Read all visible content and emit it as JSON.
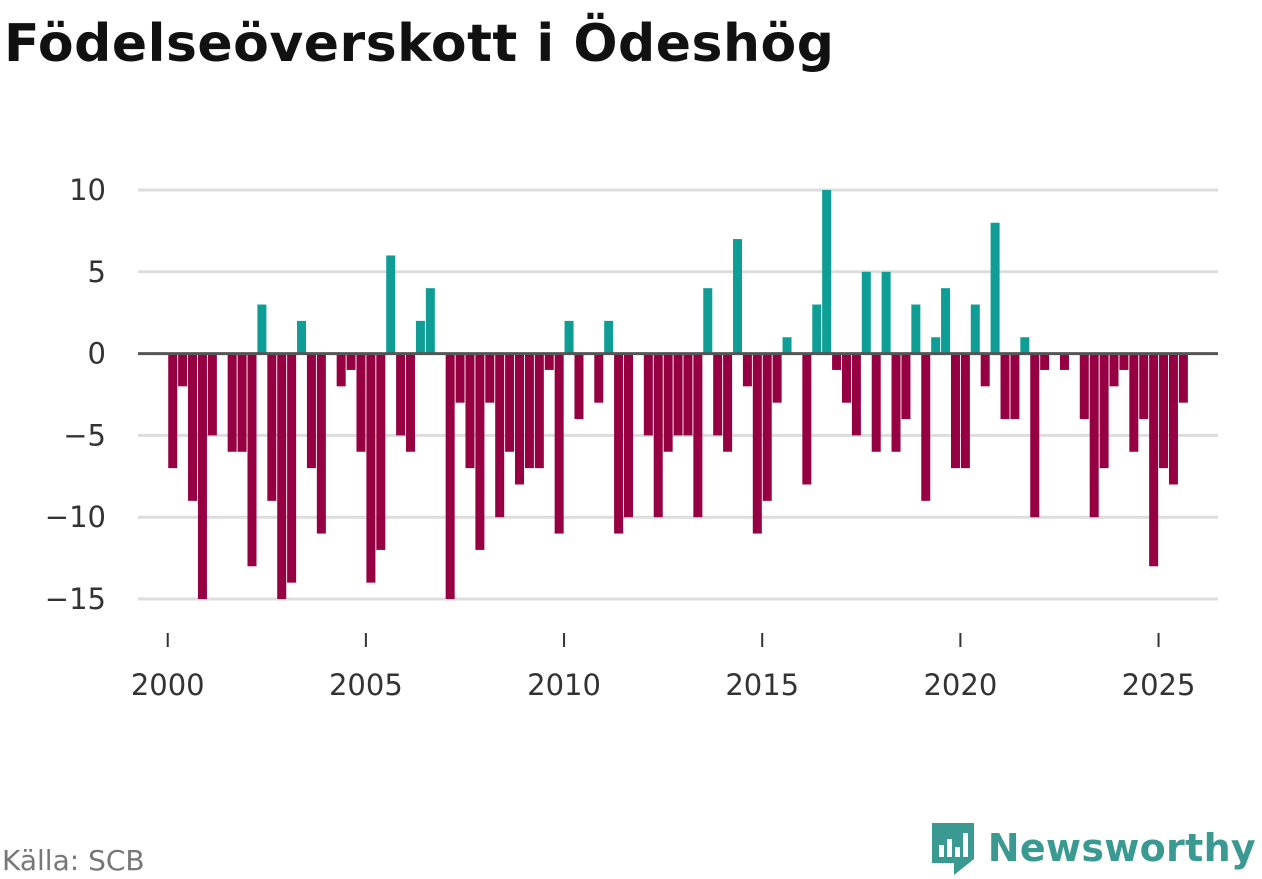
{
  "title": "Födelseöverskott i Ödeshög",
  "source": "Källa: SCB",
  "brand": "Newsworthy",
  "colors": {
    "positive": "#0e9e96",
    "negative": "#960042",
    "grid": "#dddddd",
    "zero": "#555555",
    "brand": "#3a9a92"
  },
  "chart_data": {
    "type": "bar",
    "title": "Födelseöverskott i Ödeshög",
    "xlabel": "",
    "ylabel": "",
    "ylim": [
      -15,
      10
    ],
    "xlim": [
      1999.25,
      2026.5
    ],
    "yticks": [
      10,
      5,
      0,
      -5,
      -10,
      -15
    ],
    "ytick_labels": [
      "10",
      "5",
      "0",
      "−5",
      "−10",
      "−15"
    ],
    "xticks": [
      2000,
      2005,
      2010,
      2015,
      2020,
      2025
    ],
    "xtick_labels": [
      "2000",
      "2005",
      "2010",
      "2015",
      "2020",
      "2025"
    ],
    "period": "quarterly",
    "start": 2000,
    "values": [
      -7,
      -2,
      -9,
      -15,
      -5,
      0,
      -6,
      -6,
      -13,
      3,
      -9,
      -15,
      -14,
      2,
      -7,
      -11,
      0,
      -2,
      -1,
      -6,
      -14,
      -12,
      6,
      -5,
      -6,
      2,
      4,
      0,
      -15,
      -3,
      -7,
      -12,
      -3,
      -10,
      -6,
      -8,
      -7,
      -7,
      -1,
      -11,
      2,
      -4,
      0,
      -3,
      2,
      -11,
      -10,
      0,
      -5,
      -10,
      -6,
      -5,
      -5,
      -10,
      4,
      -5,
      -6,
      7,
      -2,
      -11,
      -9,
      -3,
      1,
      0,
      -8,
      3,
      10,
      -1,
      -3,
      -5,
      5,
      -6,
      5,
      -6,
      -4,
      3,
      -9,
      1,
      4,
      -7,
      -7,
      3,
      -2,
      8,
      -4,
      -4,
      1,
      -10,
      -1,
      0,
      -1,
      0,
      -4,
      -10,
      -7,
      -2,
      -1,
      -6,
      -4,
      -13,
      -7,
      -8,
      -3
    ]
  }
}
